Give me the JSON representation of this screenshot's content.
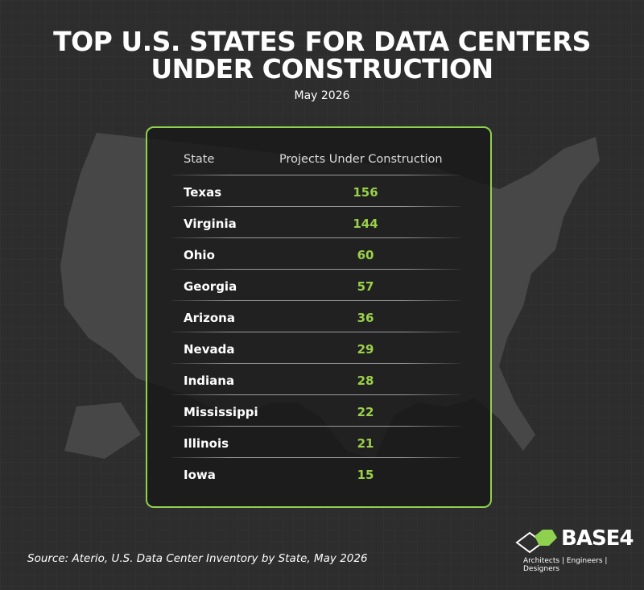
{
  "header": {
    "title_lines": [
      "TOP U.S. STATES FOR DATA CENTERS",
      "UNDER CONSTRUCTION"
    ],
    "subtitle": "May 2026"
  },
  "table": {
    "columns": [
      "State",
      "Projects Under Construction"
    ],
    "rows": [
      [
        "Texas",
        "156"
      ],
      [
        "Virginia",
        "144"
      ],
      [
        "Ohio",
        "60"
      ],
      [
        "Georgia",
        "57"
      ],
      [
        "Arizona",
        "36"
      ],
      [
        "Nevada",
        "29"
      ],
      [
        "Indiana",
        "28"
      ],
      [
        "Mississippi",
        "22"
      ],
      [
        "Illinois",
        "21"
      ],
      [
        "Iowa",
        "15"
      ]
    ]
  },
  "footer": {
    "source": "Source: Aterio, U.S. Data Center Inventory by State, May 2026",
    "logo": {
      "name": "BASE4",
      "tagline": "Architects | Engineers | Designers"
    }
  }
}
